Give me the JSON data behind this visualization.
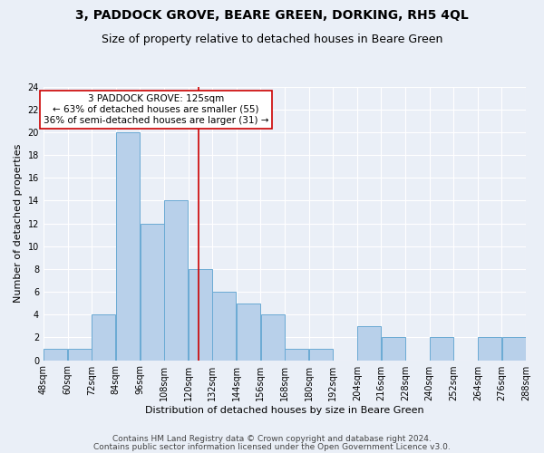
{
  "title": "3, PADDOCK GROVE, BEARE GREEN, DORKING, RH5 4QL",
  "subtitle": "Size of property relative to detached houses in Beare Green",
  "xlabel": "Distribution of detached houses by size in Beare Green",
  "ylabel": "Number of detached properties",
  "bins_left": [
    48,
    60,
    72,
    84,
    96,
    108,
    120,
    132,
    144,
    156,
    168,
    180,
    192,
    204,
    216,
    228,
    240,
    252,
    264,
    276
  ],
  "bin_width": 12,
  "bar_heights": [
    1,
    1,
    4,
    20,
    12,
    14,
    8,
    6,
    5,
    4,
    1,
    1,
    0,
    3,
    2,
    0,
    2,
    0,
    2,
    2
  ],
  "bar_color": "#b8d0ea",
  "bar_edgecolor": "#6aaad4",
  "vline_x": 125,
  "vline_color": "#cc0000",
  "annotation_text": "3 PADDOCK GROVE: 125sqm\n← 63% of detached houses are smaller (55)\n36% of semi-detached houses are larger (31) →",
  "annotation_box_edgecolor": "#cc0000",
  "annotation_box_facecolor": "#ffffff",
  "ylim": [
    0,
    24
  ],
  "yticks": [
    0,
    2,
    4,
    6,
    8,
    10,
    12,
    14,
    16,
    18,
    20,
    22,
    24
  ],
  "xlim_left": 48,
  "xlim_right": 288,
  "tick_labels": [
    "48sqm",
    "60sqm",
    "72sqm",
    "84sqm",
    "96sqm",
    "108sqm",
    "120sqm",
    "132sqm",
    "144sqm",
    "156sqm",
    "168sqm",
    "180sqm",
    "192sqm",
    "204sqm",
    "216sqm",
    "228sqm",
    "240sqm",
    "252sqm",
    "264sqm",
    "276sqm",
    "288sqm"
  ],
  "xtick_positions": [
    48,
    60,
    72,
    84,
    96,
    108,
    120,
    132,
    144,
    156,
    168,
    180,
    192,
    204,
    216,
    228,
    240,
    252,
    264,
    276,
    288
  ],
  "footer1": "Contains HM Land Registry data © Crown copyright and database right 2024.",
  "footer2": "Contains public sector information licensed under the Open Government Licence v3.0.",
  "bg_color": "#eaeff7",
  "grid_color": "#ffffff",
  "title_fontsize": 10,
  "subtitle_fontsize": 9,
  "axis_label_fontsize": 8,
  "tick_fontsize": 7,
  "annotation_fontsize": 7.5,
  "footer_fontsize": 6.5
}
